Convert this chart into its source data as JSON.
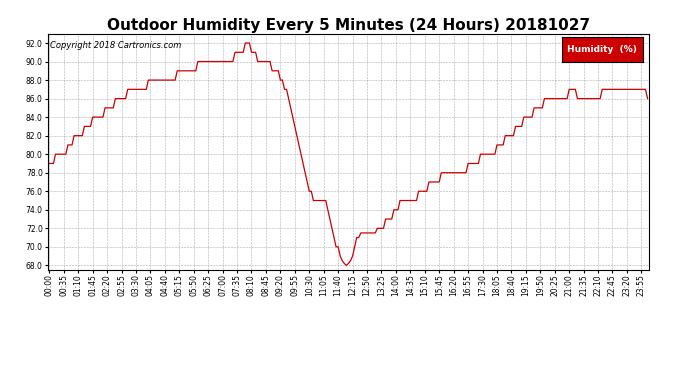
{
  "title": "Outdoor Humidity Every 5 Minutes (24 Hours) 20181027",
  "copyright": "Copyright 2018 Cartronics.com",
  "legend_label": "Humidity  (%)",
  "ylim": [
    67.5,
    93.0
  ],
  "yticks": [
    68.0,
    70.0,
    72.0,
    74.0,
    76.0,
    78.0,
    80.0,
    82.0,
    84.0,
    86.0,
    88.0,
    90.0,
    92.0
  ],
  "line_color": "#cc0000",
  "legend_bg": "#cc0000",
  "legend_text_color": "#ffffff",
  "background_color": "#ffffff",
  "grid_color": "#999999",
  "title_fontsize": 11,
  "tick_fontsize": 5.5,
  "copyright_fontsize": 6.0,
  "humidity_data": [
    79,
    79,
    79,
    80,
    80,
    80,
    80,
    80,
    80,
    81,
    81,
    81,
    82,
    82,
    82,
    82,
    82,
    83,
    83,
    83,
    83,
    84,
    84,
    84,
    84,
    84,
    84,
    85,
    85,
    85,
    85,
    85,
    86,
    86,
    86,
    86,
    86,
    86,
    87,
    87,
    87,
    87,
    87,
    87,
    87,
    87,
    87,
    87,
    88,
    88,
    88,
    88,
    88,
    88,
    88,
    88,
    88,
    88,
    88,
    88,
    88,
    88,
    89,
    89,
    89,
    89,
    89,
    89,
    89,
    89,
    89,
    89,
    90,
    90,
    90,
    90,
    90,
    90,
    90,
    90,
    90,
    90,
    90,
    90,
    90,
    90,
    90,
    90,
    90,
    90,
    91,
    91,
    91,
    91,
    91,
    92,
    92,
    92,
    91,
    91,
    91,
    90,
    90,
    90,
    90,
    90,
    90,
    90,
    89,
    89,
    89,
    89,
    88,
    88,
    87,
    87,
    86,
    85,
    84,
    83,
    82,
    81,
    80,
    79,
    78,
    77,
    76,
    76,
    75,
    75,
    75,
    75,
    75,
    75,
    75,
    74,
    73,
    72,
    71,
    70,
    70,
    69,
    68.5,
    68.2,
    68.0,
    68.2,
    68.5,
    69,
    70,
    71,
    71,
    71.5,
    71.5,
    71.5,
    71.5,
    71.5,
    71.5,
    71.5,
    71.5,
    72,
    72,
    72,
    72,
    73,
    73,
    73,
    73,
    74,
    74,
    74,
    75,
    75,
    75,
    75,
    75,
    75,
    75,
    75,
    75,
    76,
    76,
    76,
    76,
    76,
    77,
    77,
    77,
    77,
    77,
    77,
    78,
    78,
    78,
    78,
    78,
    78,
    78,
    78,
    78,
    78,
    78,
    78,
    78,
    79,
    79,
    79,
    79,
    79,
    79,
    80,
    80,
    80,
    80,
    80,
    80,
    80,
    80,
    81,
    81,
    81,
    81,
    82,
    82,
    82,
    82,
    82,
    83,
    83,
    83,
    83,
    84,
    84,
    84,
    84,
    84,
    85,
    85,
    85,
    85,
    85,
    86,
    86,
    86,
    86,
    86,
    86,
    86,
    86,
    86,
    86,
    86,
    86,
    87,
    87,
    87,
    87,
    86,
    86,
    86,
    86,
    86,
    86,
    86,
    86,
    86,
    86,
    86,
    86,
    87,
    87,
    87,
    87,
    87,
    87,
    87,
    87,
    87,
    87,
    87,
    87,
    87,
    87,
    87,
    87,
    87,
    87,
    87,
    87,
    87,
    87,
    86
  ]
}
